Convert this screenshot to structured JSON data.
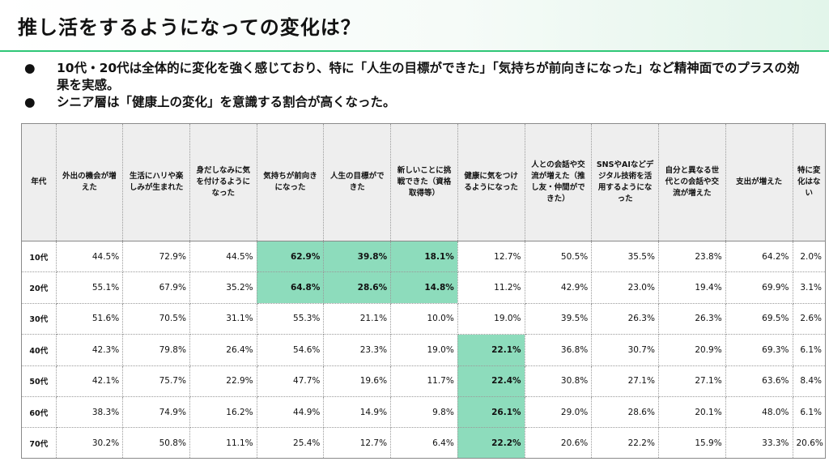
{
  "title": "推し活をするようになっての変化は？",
  "bullets": [
    "10代・20代は全体的に変化を強く感じており、特に「人生の目標ができた」「気持ちが前向きになった」など精神面でのプラスの効果を実感。",
    "シニア層は「健康上の変化」を意識する割合が高くなった。"
  ],
  "bullet_marker": "●",
  "colors": {
    "accent_line": "#2fc777",
    "highlight": "#8ddcbc",
    "header_bg": "#eeeeee"
  },
  "table": {
    "headers": [
      "年代",
      "外出の機会が増えた",
      "生活にハリや楽しみが生まれた",
      "身だしなみに気を付けるようになった",
      "気持ちが前向きになった",
      "人生の目標ができた",
      "新しいことに挑戦できた（資格取得等）",
      "健康に気をつけるようになった",
      "人との会話や交流が増えた（推し友・仲間ができた）",
      "SNSやAIなどデジタル技術を活用するようになった",
      "自分と異なる世代との会話や交流が増えた",
      "支出が増えた",
      "特に変化はない"
    ],
    "rows": [
      {
        "age": "10代",
        "values": [
          "44.5%",
          "72.9%",
          "44.5%",
          "62.9%",
          "39.8%",
          "18.1%",
          "12.7%",
          "50.5%",
          "35.5%",
          "23.8%",
          "64.2%",
          "2.0%"
        ],
        "highlight": [
          3,
          4,
          5
        ]
      },
      {
        "age": "20代",
        "values": [
          "55.1%",
          "67.9%",
          "35.2%",
          "64.8%",
          "28.6%",
          "14.8%",
          "11.2%",
          "42.9%",
          "23.0%",
          "19.4%",
          "69.9%",
          "3.1%"
        ],
        "highlight": [
          3,
          4,
          5
        ]
      },
      {
        "age": "30代",
        "values": [
          "51.6%",
          "70.5%",
          "31.1%",
          "55.3%",
          "21.1%",
          "10.0%",
          "19.0%",
          "39.5%",
          "26.3%",
          "26.3%",
          "69.5%",
          "2.6%"
        ],
        "highlight": []
      },
      {
        "age": "40代",
        "values": [
          "42.3%",
          "79.8%",
          "26.4%",
          "54.6%",
          "23.3%",
          "19.0%",
          "22.1%",
          "36.8%",
          "30.7%",
          "20.9%",
          "69.3%",
          "6.1%"
        ],
        "highlight": [
          6
        ]
      },
      {
        "age": "50代",
        "values": [
          "42.1%",
          "75.7%",
          "22.9%",
          "47.7%",
          "19.6%",
          "11.7%",
          "22.4%",
          "30.8%",
          "27.1%",
          "27.1%",
          "63.6%",
          "8.4%"
        ],
        "highlight": [
          6
        ]
      },
      {
        "age": "60代",
        "values": [
          "38.3%",
          "74.9%",
          "16.2%",
          "44.9%",
          "14.9%",
          "9.8%",
          "26.1%",
          "29.0%",
          "28.6%",
          "20.1%",
          "48.0%",
          "6.1%"
        ],
        "highlight": [
          6
        ]
      },
      {
        "age": "70代",
        "values": [
          "30.2%",
          "50.8%",
          "11.1%",
          "25.4%",
          "12.7%",
          "6.4%",
          "22.2%",
          "20.6%",
          "22.2%",
          "15.9%",
          "33.3%",
          "20.6%"
        ],
        "highlight": [
          6
        ]
      }
    ]
  }
}
